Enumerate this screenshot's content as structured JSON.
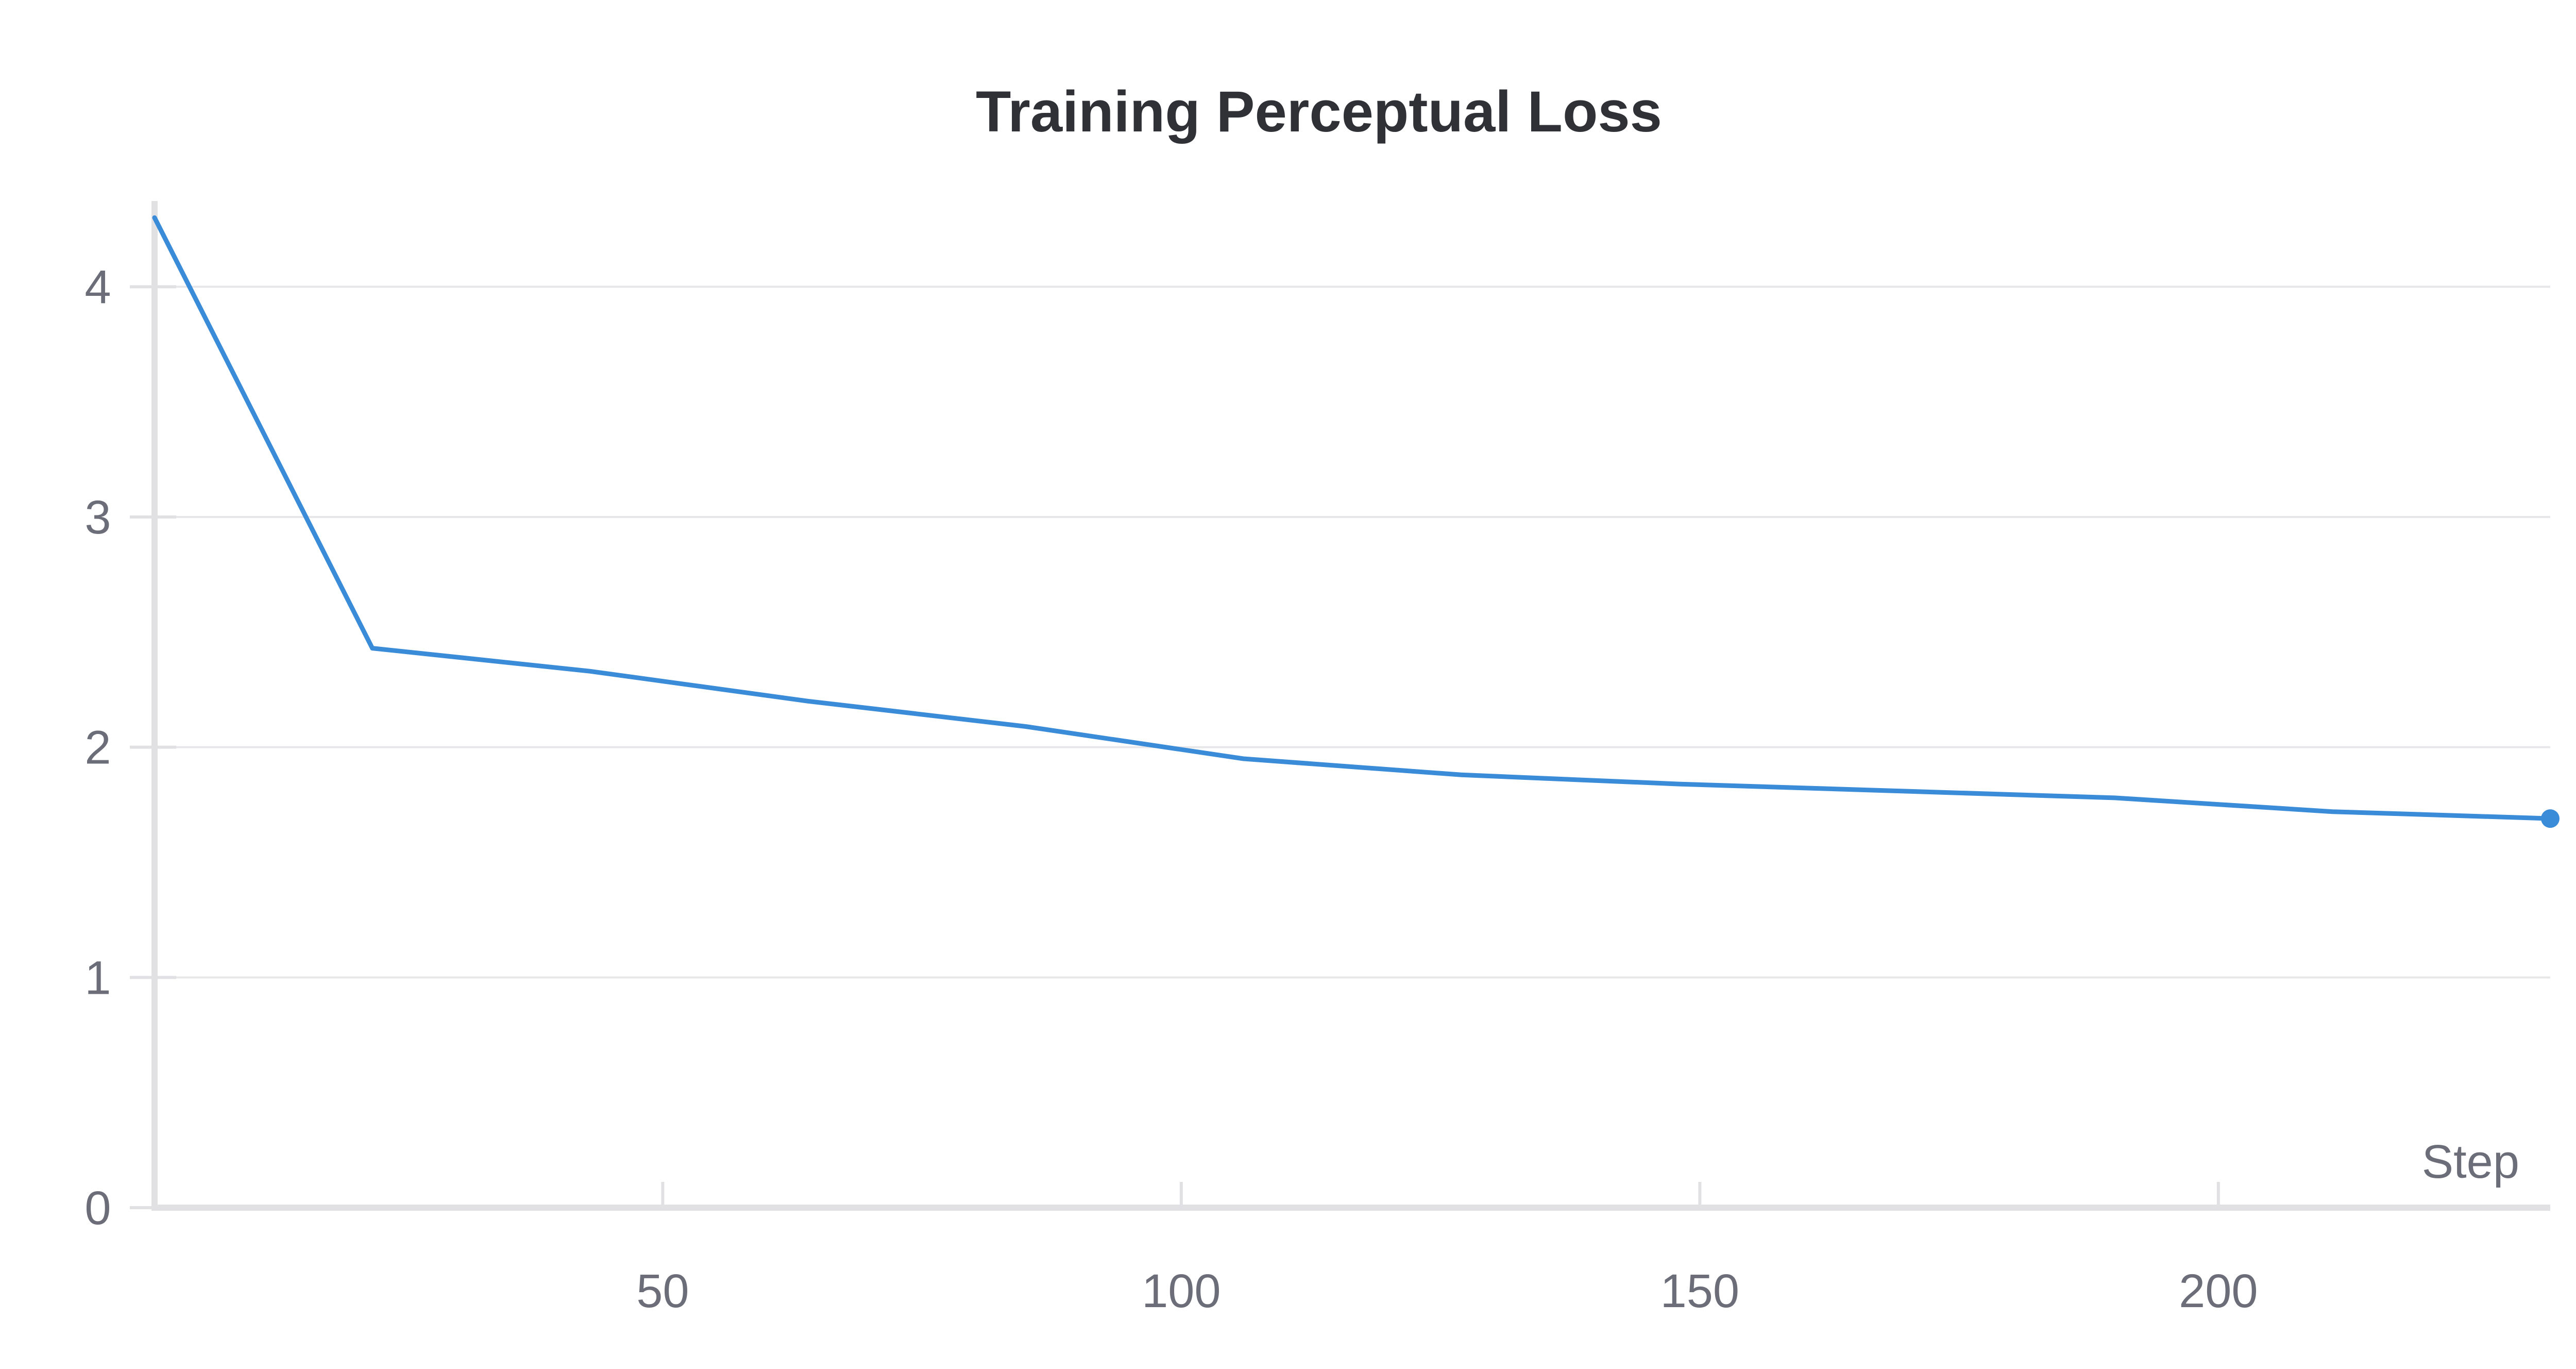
{
  "chart_data": {
    "type": "line",
    "title": "Training Perceptual Loss",
    "xlabel": "Step",
    "ylabel": "",
    "xlim": [
      1,
      232
    ],
    "ylim": [
      0,
      4.35
    ],
    "x_ticks": [
      50,
      100,
      150,
      200
    ],
    "x_tick_labels": [
      "50",
      "100",
      "150",
      "200"
    ],
    "y_ticks": [
      0,
      1,
      2,
      3,
      4
    ],
    "y_tick_labels": [
      "0",
      "1",
      "2",
      "3",
      "4"
    ],
    "grid": true,
    "legend": false,
    "series": [
      {
        "color": "#3a8bd8",
        "x": [
          1,
          22,
          43,
          64,
          85,
          106,
          127,
          148,
          169,
          190,
          211,
          232
        ],
        "y": [
          4.3,
          2.43,
          2.33,
          2.2,
          2.09,
          1.95,
          1.88,
          1.84,
          1.81,
          1.78,
          1.72,
          1.69
        ]
      }
    ]
  }
}
